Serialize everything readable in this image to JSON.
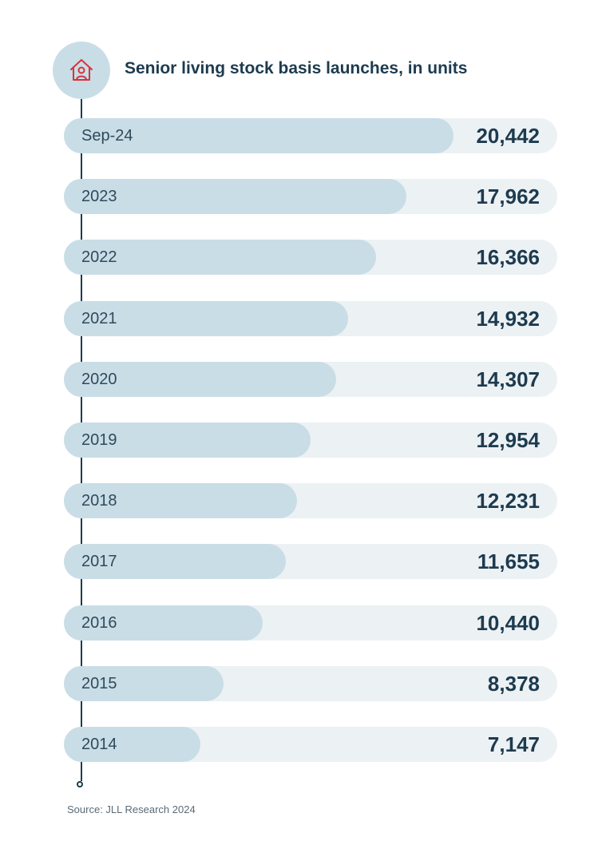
{
  "colors": {
    "bar_fill": "#c9dde6",
    "bar_track": "#ecf1f4",
    "text_dark": "#1d3b4f",
    "icon_accent": "#d7333d"
  },
  "icon": "senior-living-house-icon",
  "chart_data": {
    "type": "bar",
    "orientation": "horizontal",
    "title": "Senior living stock basis launches, in units",
    "categories": [
      "Sep-24",
      "2023",
      "2022",
      "2021",
      "2020",
      "2019",
      "2018",
      "2017",
      "2016",
      "2015",
      "2014"
    ],
    "values": [
      20442,
      17962,
      16366,
      14932,
      14307,
      12954,
      12231,
      11655,
      10440,
      8378,
      7147
    ],
    "value_labels": [
      "20,442",
      "17,962",
      "16,366",
      "14,932",
      "14,307",
      "12,954",
      "12,231",
      "11,655",
      "10,440",
      "8,378",
      "7,147"
    ],
    "xlim": [
      0,
      25900
    ],
    "grid": false,
    "legend": "none"
  },
  "footer": {
    "source": "Source: JLL Research 2024"
  }
}
